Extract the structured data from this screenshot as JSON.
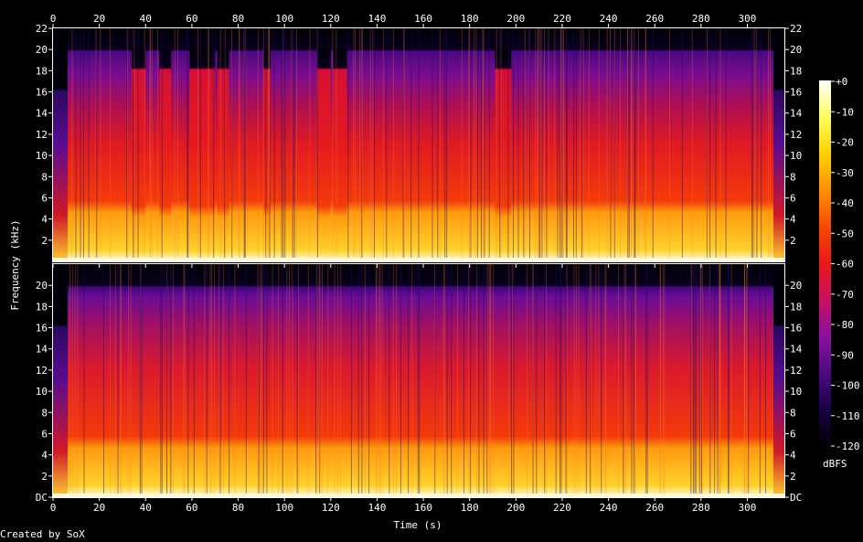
{
  "footer": {
    "credit": "Created by SoX"
  },
  "chart_data": {
    "type": "heatmap",
    "xlabel": "Time (s)",
    "ylabel": "Frequency (kHz)",
    "xlim": [
      0,
      316
    ],
    "ylim": [
      0,
      22
    ],
    "x_ticks": [
      0,
      20,
      40,
      60,
      80,
      100,
      120,
      140,
      160,
      180,
      200,
      220,
      240,
      260,
      280,
      300
    ],
    "x_tick_labels": [
      "0",
      "20",
      "40",
      "60",
      "80",
      "100",
      "120",
      "140",
      "160",
      "180",
      "200",
      "220",
      "240",
      "260",
      "280",
      "300"
    ],
    "channels": [
      {
        "y_ticks": [
          2,
          4,
          6,
          8,
          10,
          12,
          14,
          16,
          18,
          20,
          22
        ],
        "y_tick_labels": [
          "2",
          "4",
          "6",
          "8",
          "10",
          "12",
          "14",
          "16",
          "18",
          "20",
          "22"
        ],
        "lowpass_cutoff_khz": 20,
        "full_band_sections_s": [
          [
            34,
            40
          ],
          [
            46,
            51
          ],
          [
            59,
            65
          ],
          [
            65,
            70
          ],
          [
            71,
            76
          ],
          [
            91,
            94
          ],
          [
            114,
            120
          ],
          [
            121,
            127
          ],
          [
            191,
            198
          ]
        ]
      },
      {
        "y_ticks": [
          0,
          2,
          4,
          6,
          8,
          10,
          12,
          14,
          16,
          18,
          20
        ],
        "y_tick_labels": [
          "DC",
          "2",
          "4",
          "6",
          "8",
          "10",
          "12",
          "14",
          "16",
          "18",
          "20"
        ],
        "lowpass_cutoff_khz": 20,
        "full_band_sections_s": []
      }
    ],
    "colorbar": {
      "unit": "dBFS",
      "range": [
        -120,
        0
      ],
      "ticks": [
        0,
        -10,
        -20,
        -30,
        -40,
        -50,
        -60,
        -70,
        -80,
        -90,
        -100,
        -110,
        -120
      ],
      "tick_labels": [
        "+0",
        "-10",
        "-20",
        "-30",
        "-40",
        "-50",
        "-60",
        "-70",
        "-80",
        "-90",
        "-100",
        "-110",
        "-120"
      ],
      "colors": [
        "#000000",
        "#1a0044",
        "#4a0a80",
        "#8a10a0",
        "#c81060",
        "#e8181c",
        "#f84a00",
        "#ff9000",
        "#ffd000",
        "#ffff60",
        "#ffffff"
      ]
    }
  }
}
